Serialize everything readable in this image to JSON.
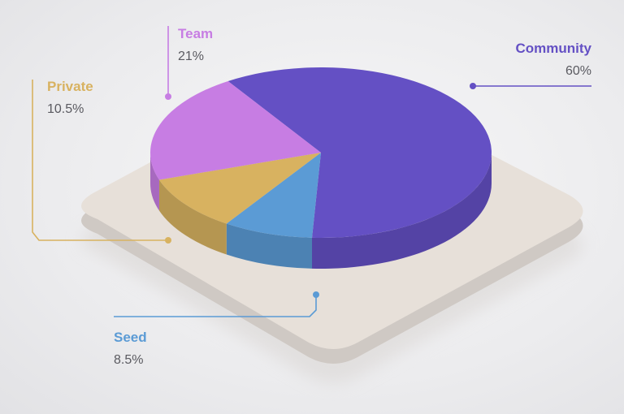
{
  "chart_data": {
    "type": "pie",
    "slices": [
      {
        "label": "Community",
        "value": 60,
        "value_label": "60%",
        "color": "#6450c4"
      },
      {
        "label": "Seed",
        "value": 8.5,
        "value_label": "8.5%",
        "color": "#5b9bd5"
      },
      {
        "label": "Private",
        "value": 10.5,
        "value_label": "10.5%",
        "color": "#d8b260"
      },
      {
        "label": "Team",
        "value": 21,
        "value_label": "21%",
        "color": "#c77de3"
      }
    ],
    "style": "3d-isometric",
    "legend": "callout-labels"
  }
}
